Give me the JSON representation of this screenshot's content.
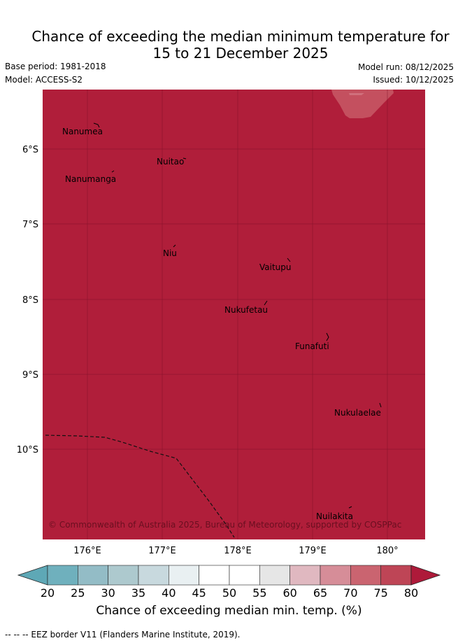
{
  "title_line1": "Chance of exceeding the median minimum temperature for",
  "title_line2": "15 to 21 December 2025",
  "meta": {
    "base_period": "Base period: 1981-2018",
    "model": "Model: ACCESS-S2",
    "model_run": "Model run: 08/12/2025",
    "issued": "Issued: 10/12/2025"
  },
  "map": {
    "background_color": "#b01e3a",
    "upper_patch_color": "#c4505f",
    "lon_ticks": [
      "176°E",
      "177°E",
      "178°E",
      "179°E",
      "180°"
    ],
    "lat_ticks": [
      "6°S",
      "7°S",
      "8°S",
      "9°S",
      "10°S"
    ],
    "places": [
      {
        "name": "Nanumea"
      },
      {
        "name": "Nuitao"
      },
      {
        "name": "Nanumanga"
      },
      {
        "name": "Niu"
      },
      {
        "name": "Vaitupu"
      },
      {
        "name": "Nukufetau"
      },
      {
        "name": "Funafuti"
      },
      {
        "name": "Nukulaelae"
      },
      {
        "name": "Nuilakita"
      }
    ],
    "credit": "© Commonwealth of Australia 2025, Bureau of Meteorology, supported by COSPPac"
  },
  "colorbar": {
    "ticks": [
      "20",
      "25",
      "30",
      "35",
      "40",
      "45",
      "50",
      "55",
      "60",
      "65",
      "70",
      "75",
      "80"
    ],
    "colors": [
      "#5ea8b6",
      "#6fb0bd",
      "#93bcc6",
      "#adc9ce",
      "#c8d9de",
      "#e9f0f2",
      "#ffffff",
      "#ffffff",
      "#e6e6e6",
      "#e0b8c0",
      "#d68d98",
      "#ca6470",
      "#be4556",
      "#ae1a3a"
    ],
    "label": "Chance of exceeding median min. temp. (%)"
  },
  "legend_note": "--  --  -- EEZ border V11 (Flanders Marine Institute, 2019)."
}
